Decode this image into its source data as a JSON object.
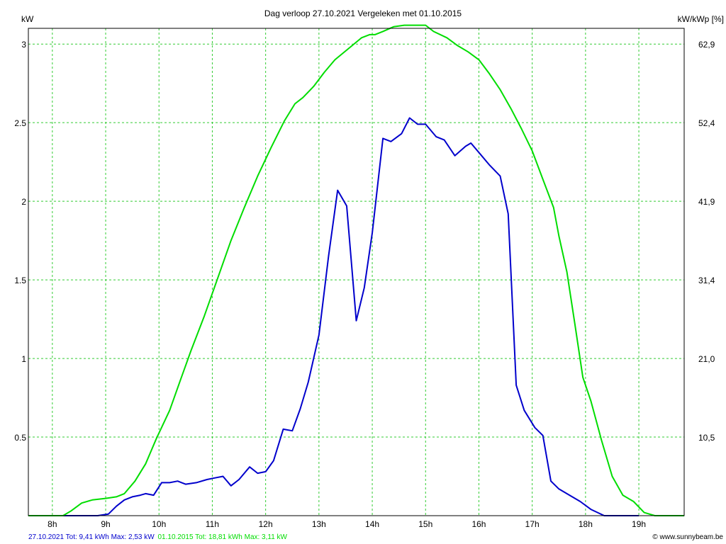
{
  "chart_data": {
    "type": "line",
    "title": "Dag  verloop 27.10.2021   Vergeleken met 01.10.2015",
    "ylabel_left": "kW",
    "ylabel_right": "kW/kWp [%]",
    "x_ticks": [
      "8h",
      "9h",
      "10h",
      "11h",
      "12h",
      "13h",
      "14h",
      "15h",
      "16h",
      "17h",
      "18h",
      "19h"
    ],
    "y_ticks_left": [
      "0.5",
      "1",
      "1.5",
      "2",
      "2.5",
      "3"
    ],
    "y_ticks_right": [
      "10,5",
      "21,0",
      "31,4",
      "41,9",
      "52,4",
      "62,9"
    ],
    "xlim": [
      7.55,
      19.85
    ],
    "ylim": [
      0,
      3.1
    ],
    "grid": true,
    "colors": {
      "series_2021": "#0000cc",
      "series_2015": "#00dd00",
      "grid": "#33cc33"
    },
    "series": [
      {
        "name": "27.10.2021",
        "color": "#0000cc",
        "x": [
          7.55,
          8.5,
          8.85,
          9.05,
          9.2,
          9.35,
          9.5,
          9.65,
          9.75,
          9.9,
          10.05,
          10.2,
          10.35,
          10.5,
          10.7,
          10.9,
          11.05,
          11.2,
          11.35,
          11.5,
          11.7,
          11.85,
          12.0,
          12.15,
          12.33,
          12.5,
          12.65,
          12.8,
          13.0,
          13.18,
          13.35,
          13.52,
          13.7,
          13.85,
          14.0,
          14.2,
          14.35,
          14.55,
          14.7,
          14.85,
          15.0,
          15.2,
          15.35,
          15.55,
          15.75,
          15.85,
          16.0,
          16.2,
          16.4,
          16.55,
          16.7,
          16.85,
          17.05,
          17.2,
          17.35,
          17.5,
          17.7,
          17.9,
          18.1,
          18.35,
          18.7,
          19.0
        ],
        "y": [
          0,
          0,
          0,
          0.01,
          0.06,
          0.1,
          0.12,
          0.13,
          0.14,
          0.13,
          0.21,
          0.21,
          0.22,
          0.2,
          0.21,
          0.23,
          0.24,
          0.25,
          0.19,
          0.23,
          0.31,
          0.27,
          0.28,
          0.35,
          0.55,
          0.54,
          0.68,
          0.85,
          1.15,
          1.65,
          2.07,
          1.97,
          1.24,
          1.45,
          1.8,
          2.4,
          2.38,
          2.43,
          2.53,
          2.49,
          2.49,
          2.41,
          2.39,
          2.29,
          2.35,
          2.37,
          2.31,
          2.23,
          2.16,
          1.92,
          0.83,
          0.67,
          0.56,
          0.51,
          0.22,
          0.17,
          0.13,
          0.09,
          0.04,
          0,
          0,
          0
        ]
      },
      {
        "name": "01.10.2015",
        "color": "#00dd00",
        "x": [
          7.55,
          8.2,
          8.35,
          8.55,
          8.75,
          9.0,
          9.2,
          9.35,
          9.55,
          9.75,
          9.95,
          10.2,
          10.4,
          10.6,
          10.85,
          11.1,
          11.35,
          11.6,
          11.85,
          12.1,
          12.35,
          12.55,
          12.7,
          12.9,
          13.1,
          13.3,
          13.55,
          13.8,
          13.95,
          14.05,
          14.2,
          14.4,
          14.6,
          15.0,
          15.15,
          15.4,
          15.6,
          15.8,
          16.0,
          16.2,
          16.4,
          16.6,
          16.8,
          17.0,
          17.2,
          17.4,
          17.5,
          17.65,
          17.8,
          17.95,
          18.1,
          18.3,
          18.5,
          18.7,
          18.9,
          19.1,
          19.3,
          19.5,
          19.85
        ],
        "y": [
          0,
          0,
          0.03,
          0.08,
          0.1,
          0.11,
          0.12,
          0.14,
          0.22,
          0.33,
          0.49,
          0.67,
          0.86,
          1.05,
          1.27,
          1.51,
          1.75,
          1.96,
          2.16,
          2.34,
          2.51,
          2.62,
          2.66,
          2.73,
          2.82,
          2.9,
          2.97,
          3.04,
          3.06,
          3.06,
          3.08,
          3.11,
          3.12,
          3.12,
          3.08,
          3.04,
          2.99,
          2.95,
          2.9,
          2.81,
          2.71,
          2.59,
          2.46,
          2.32,
          2.14,
          1.96,
          1.78,
          1.55,
          1.22,
          0.88,
          0.73,
          0.48,
          0.25,
          0.13,
          0.09,
          0.02,
          0,
          0,
          0
        ]
      }
    ]
  },
  "footer": {
    "legend_2021": "27.10.2021 Tot: 9,41 kWh Max: 2,53 kW",
    "legend_2015": "01.10.2015 Tot: 18,81 kWh Max: 3,11 kW",
    "credit": "© www.sunnybeam.be"
  }
}
